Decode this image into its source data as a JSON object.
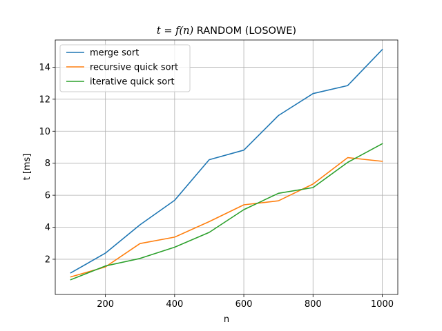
{
  "chart_data": {
    "type": "line",
    "title_prefix": "t = f(n)",
    "title_suffix": " RANDOM (LOSOWE)",
    "xlabel": "n",
    "ylabel": "t [ms]",
    "xlim": [
      55,
      1045
    ],
    "ylim": [
      -0.2,
      15.7
    ],
    "xticks": [
      200,
      400,
      600,
      800,
      1000
    ],
    "yticks": [
      2,
      4,
      6,
      8,
      10,
      12,
      14
    ],
    "grid": true,
    "legend_position": "upper-left",
    "x": [
      100,
      200,
      300,
      400,
      500,
      600,
      700,
      800,
      900,
      1000
    ],
    "series": [
      {
        "name": "merge sort",
        "color": "#1f77b4",
        "values": [
          1.15,
          2.38,
          4.15,
          5.68,
          8.22,
          8.82,
          10.98,
          12.35,
          12.85,
          15.1
        ]
      },
      {
        "name": "recursive quick sort",
        "color": "#ff7f0e",
        "values": [
          0.9,
          1.52,
          2.98,
          3.38,
          4.35,
          5.4,
          5.65,
          6.7,
          8.35,
          8.12
        ]
      },
      {
        "name": "iterative quick sort",
        "color": "#2ca02c",
        "values": [
          0.72,
          1.58,
          2.05,
          2.75,
          3.68,
          5.1,
          6.12,
          6.48,
          8.05,
          9.22
        ]
      }
    ]
  }
}
